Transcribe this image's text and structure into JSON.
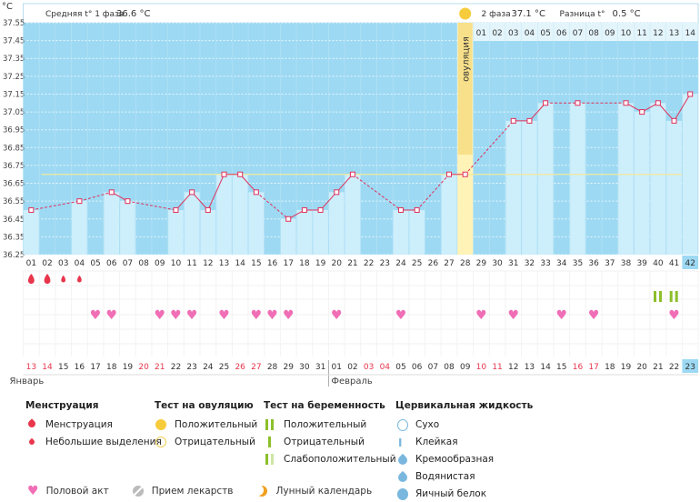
{
  "header": {
    "unit": "°C",
    "phase1_label": "Средняя t° 1 фаза",
    "phase1_value": "36.6 °C",
    "phase2_label": "2 фаза",
    "phase2_value": "37.1 °C",
    "diff_label": "Разница t°",
    "diff_value": "0.5 °C",
    "ovulation_label": "овуляция"
  },
  "colors": {
    "accent": "#9dd9f3",
    "bar": "#cdeefb",
    "line": "#e0305a",
    "ovulation": "#fff3b8",
    "coverline": "#f2ea9a",
    "weekend": "#e8364c",
    "heart": "#f06eb5"
  },
  "chart_data": {
    "type": "line",
    "ylabel": "°C",
    "ylim": [
      36.25,
      37.55
    ],
    "yticks": [
      "37.55",
      "37.45",
      "37.35",
      "37.25",
      "37.15",
      "37.05",
      "36.95",
      "36.85",
      "36.75",
      "36.65",
      "36.55",
      "36.45",
      "36.35",
      "36.25"
    ],
    "cycle_days": [
      "01",
      "02",
      "03",
      "04",
      "05",
      "06",
      "07",
      "08",
      "09",
      "10",
      "11",
      "12",
      "13",
      "14",
      "15",
      "16",
      "17",
      "18",
      "19",
      "20",
      "21",
      "22",
      "23",
      "24",
      "25",
      "26",
      "27",
      "28",
      "29",
      "30",
      "31",
      "32",
      "33",
      "34",
      "35",
      "36",
      "37",
      "38",
      "39",
      "40",
      "41",
      "42"
    ],
    "phase2_days": [
      "01",
      "02",
      "03",
      "04",
      "05",
      "06",
      "07",
      "08",
      "09",
      "10",
      "11",
      "12",
      "13",
      "14"
    ],
    "temperatures": [
      36.5,
      null,
      null,
      36.55,
      null,
      36.6,
      36.55,
      null,
      null,
      36.5,
      36.6,
      36.5,
      36.7,
      36.7,
      36.6,
      null,
      36.45,
      36.5,
      36.5,
      36.6,
      36.7,
      null,
      null,
      36.5,
      36.5,
      null,
      36.7,
      36.7,
      null,
      null,
      37.0,
      37.0,
      37.1,
      null,
      37.1,
      null,
      null,
      37.1,
      37.05,
      37.1,
      37.0,
      37.15
    ],
    "coverline": 36.7,
    "ovulation_day": "28",
    "menstruation": [
      {
        "day": "01",
        "type": "heavy"
      },
      {
        "day": "02",
        "type": "heavy"
      },
      {
        "day": "03",
        "type": "light"
      },
      {
        "day": "04",
        "type": "light"
      }
    ],
    "intercourse_days": [
      "05",
      "06",
      "09",
      "10",
      "11",
      "13",
      "15",
      "16",
      "17",
      "20",
      "24",
      "29",
      "31",
      "34",
      "36",
      "41"
    ],
    "pregnancy_tests": [
      {
        "day": "40",
        "result": "positive"
      },
      {
        "day": "41",
        "result": "positive"
      }
    ],
    "calendar_dates": [
      "13",
      "14",
      "15",
      "16",
      "17",
      "18",
      "19",
      "20",
      "21",
      "22",
      "23",
      "24",
      "25",
      "26",
      "27",
      "28",
      "29",
      "30",
      "31",
      "01",
      "02",
      "03",
      "04",
      "05",
      "06",
      "07",
      "08",
      "09",
      "10",
      "11",
      "12",
      "13",
      "14",
      "15",
      "16",
      "17",
      "18",
      "19",
      "20",
      "21",
      "22",
      "23"
    ],
    "weekend_flags": [
      1,
      1,
      0,
      0,
      0,
      0,
      0,
      1,
      1,
      0,
      0,
      0,
      0,
      1,
      1,
      0,
      0,
      0,
      0,
      0,
      0,
      1,
      1,
      0,
      0,
      0,
      0,
      0,
      1,
      1,
      0,
      0,
      0,
      0,
      1,
      1,
      0,
      0,
      0,
      0,
      0,
      0
    ],
    "months": [
      {
        "label": "Январь",
        "start": "13"
      },
      {
        "label": "Февраль",
        "start": "01"
      }
    ],
    "last_day_number": "42",
    "last_date": "23"
  },
  "legend": {
    "menstruation_title": "Менструация",
    "menstruation_items": [
      "Менструация",
      "Небольшие выделения"
    ],
    "ovulation_title": "Тест на овуляцию",
    "ovulation_items": [
      "Положительный",
      "Отрицательный"
    ],
    "pregnancy_title": "Тест на беременность",
    "pregnancy_items": [
      "Положительный",
      "Отрицательный",
      "Слабоположительный"
    ],
    "cervical_title": "Цервикальная жидкость",
    "cervical_items": [
      "Сухо",
      "Клейкая",
      "Кремообразная",
      "Водянистая",
      "Яичный белок"
    ],
    "bottom_items": [
      "Половой акт",
      "Прием лекарств",
      "Лунный календарь"
    ]
  }
}
